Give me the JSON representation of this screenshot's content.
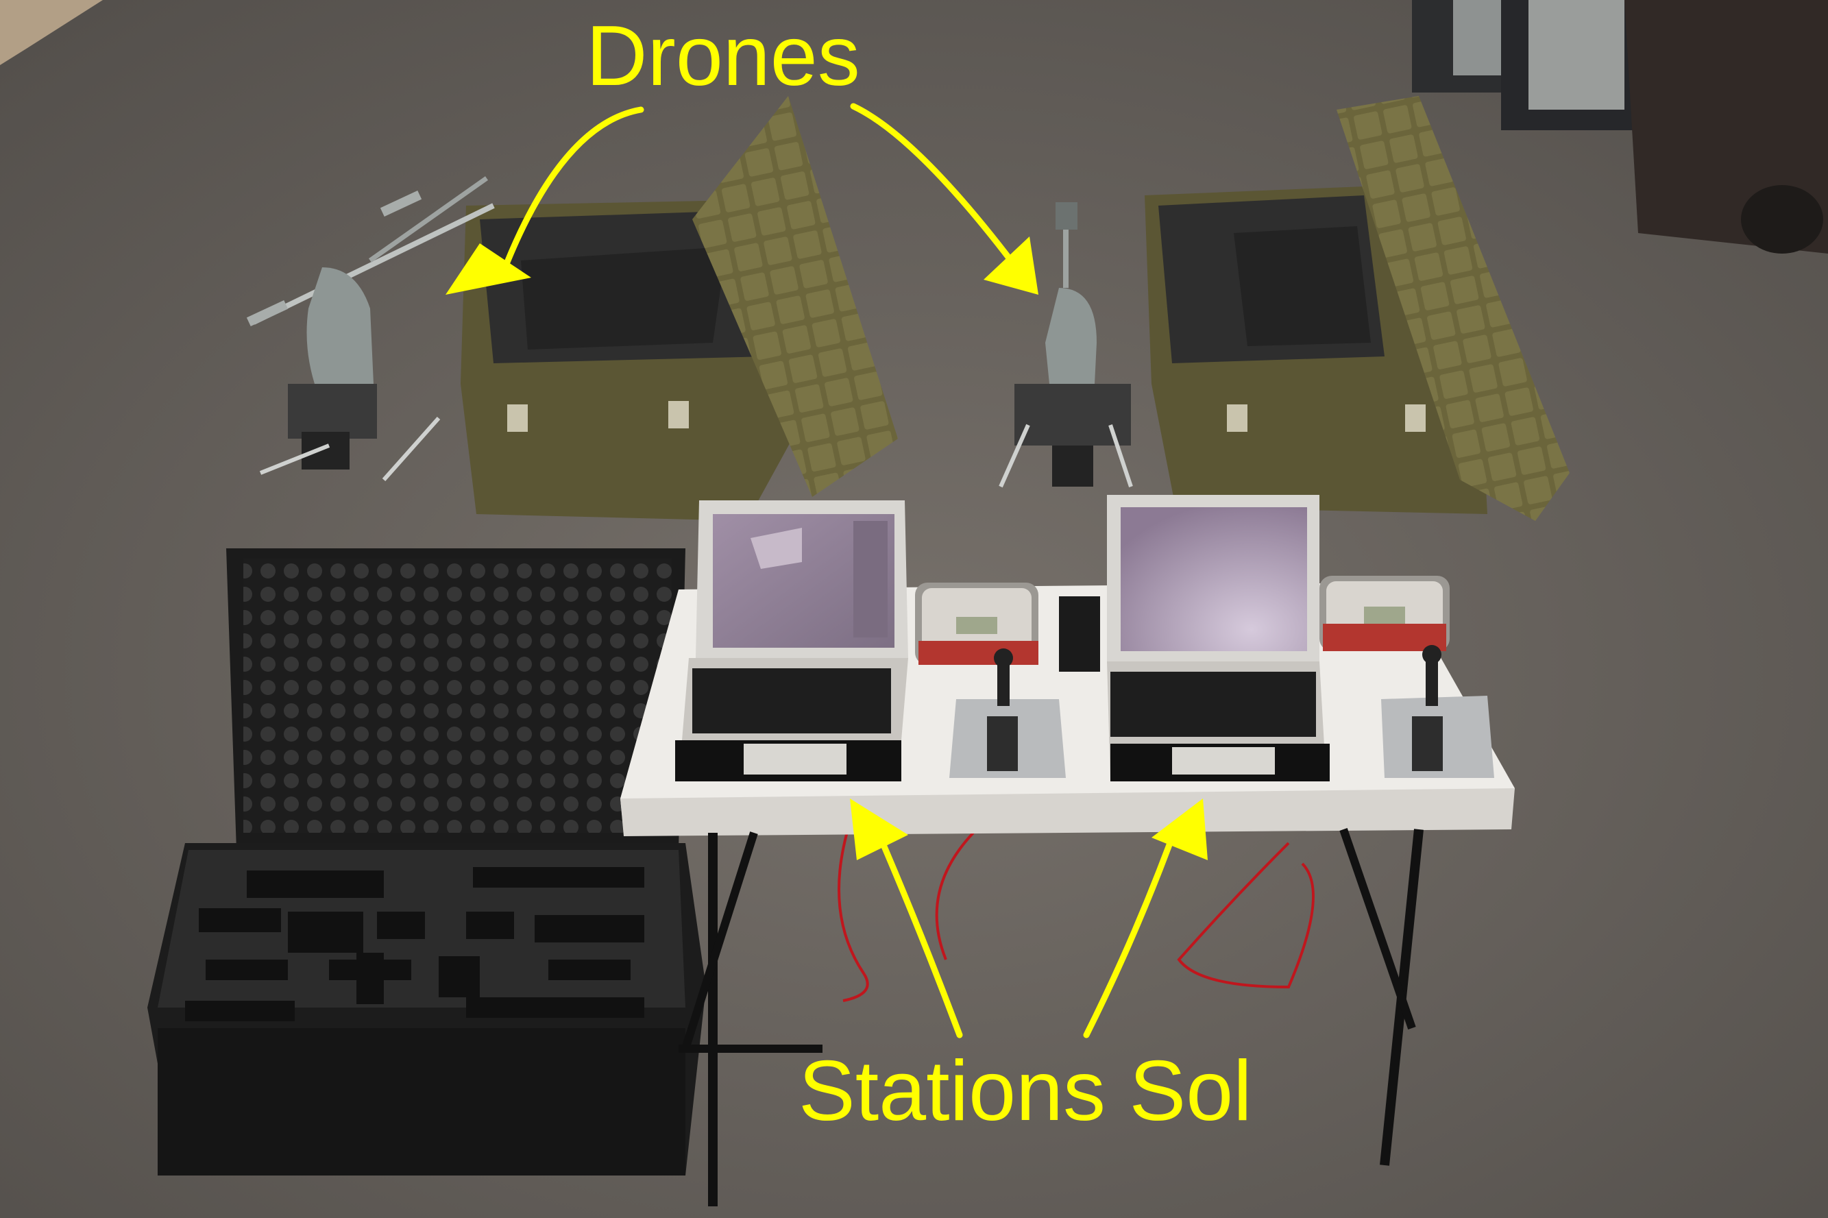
{
  "annotations": {
    "drones_label": "Drones",
    "ground_stations_label": "Stations Sol"
  },
  "colors": {
    "annotation": "#ffff00",
    "asphalt": "#67625d",
    "military_case": "#5b5634",
    "foam": "#2e2e2e",
    "table": "#eeece8",
    "laptop_screen": "#9c8a9e"
  }
}
